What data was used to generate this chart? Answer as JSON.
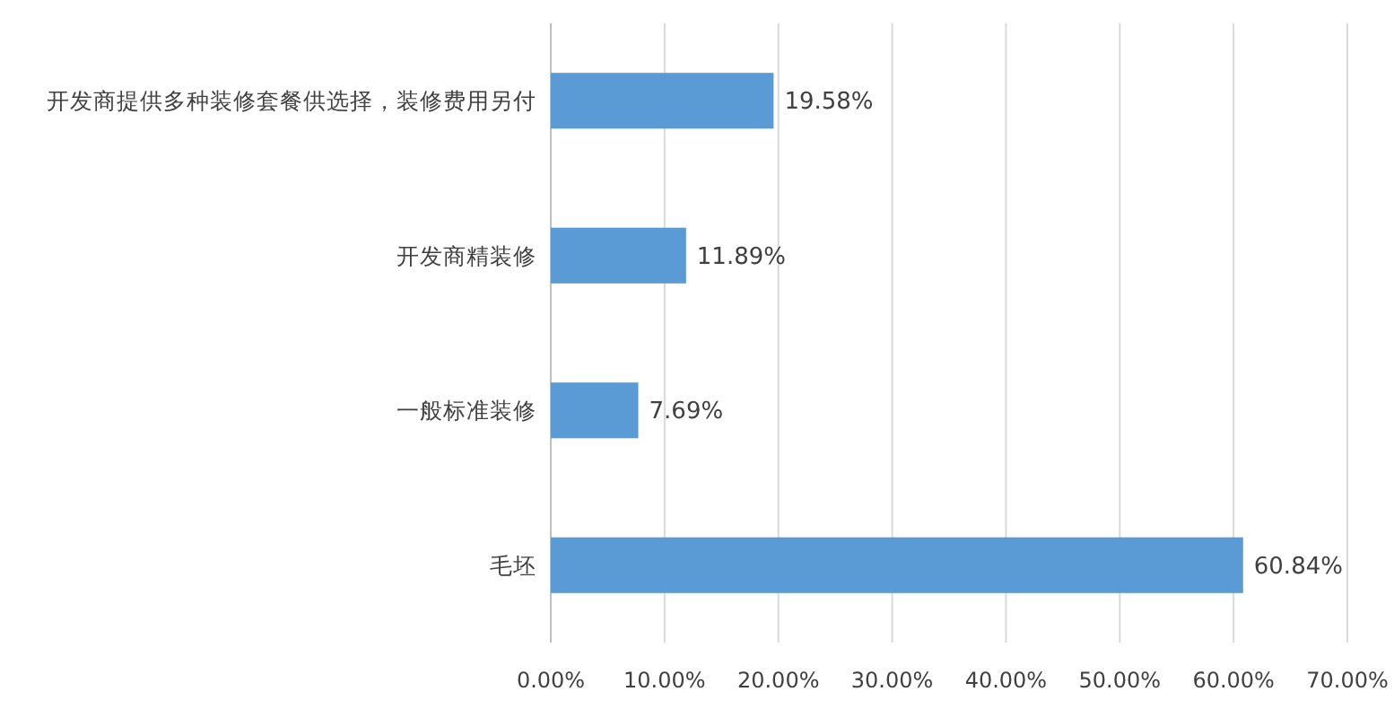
{
  "chart_data": {
    "type": "bar",
    "orientation": "horizontal",
    "categories": [
      "开发商提供多种装修套餐供选择，装修费用另付",
      "开发商精装修",
      "一般标准装修",
      "毛坯"
    ],
    "values": [
      19.58,
      11.89,
      7.69,
      60.84
    ],
    "value_labels": [
      "19.58%",
      "11.89%",
      "7.69%",
      "60.84%"
    ],
    "color": "#5b9bd5",
    "xlim": [
      0,
      70
    ],
    "xticks": [
      {
        "value": 0,
        "label": "0.00%"
      },
      {
        "value": 10,
        "label": "10.00%"
      },
      {
        "value": 20,
        "label": "20.00%"
      },
      {
        "value": 30,
        "label": "30.00%"
      },
      {
        "value": 40,
        "label": "40.00%"
      },
      {
        "value": 50,
        "label": "50.00%"
      },
      {
        "value": 60,
        "label": "60.00%"
      },
      {
        "value": 70,
        "label": "70.00%"
      }
    ],
    "grid": "x"
  }
}
